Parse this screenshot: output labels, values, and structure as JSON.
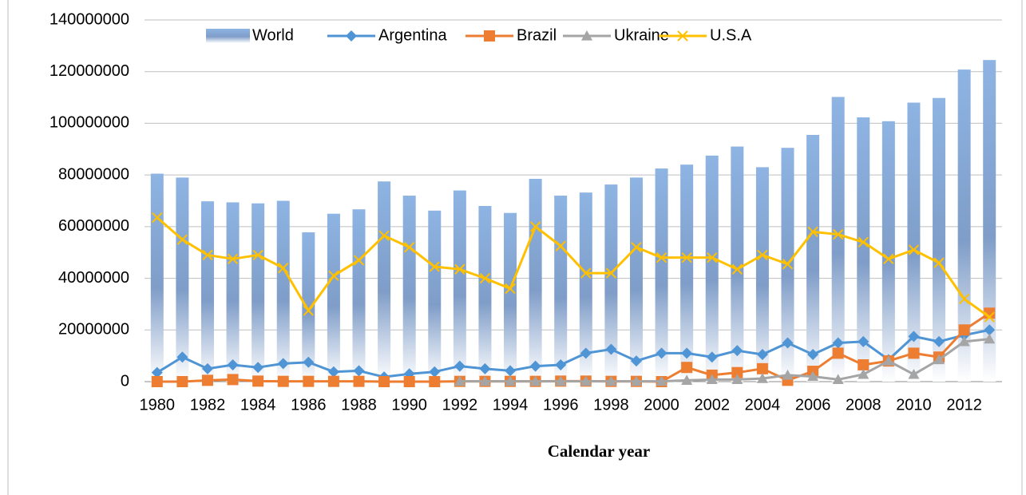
{
  "chart_data": {
    "type": "combo",
    "x_label": "Calendar year",
    "categories": [
      "1980",
      null,
      "1982",
      null,
      "1984",
      null,
      "1986",
      null,
      "1988",
      null,
      "1990",
      null,
      "1992",
      null,
      "1994",
      null,
      "1996",
      null,
      "1998",
      null,
      "2000",
      null,
      "2002",
      null,
      "2004",
      null,
      "2006",
      null,
      "2008",
      null,
      "2010",
      null,
      "2012",
      null
    ],
    "ylim": [
      0,
      140000000
    ],
    "yticks": [
      0,
      20000000,
      40000000,
      60000000,
      80000000,
      100000000,
      120000000,
      140000000
    ],
    "grid": true,
    "legend": "top",
    "series": [
      {
        "name": "World",
        "type": "bar",
        "color": "#8eb4e3",
        "values": [
          80500000,
          79000000,
          69800000,
          69400000,
          69000000,
          70000000,
          57800000,
          65000000,
          66700000,
          77500000,
          72000000,
          66200000,
          74000000,
          68000000,
          65300000,
          78500000,
          72000000,
          73200000,
          76300000,
          79000000,
          82500000,
          84000000,
          87500000,
          91000000,
          83000000,
          90500000,
          95500000,
          110200000,
          102300000,
          100800000,
          108000000,
          109800000,
          120800000,
          124500000
        ]
      },
      {
        "name": "Argentina",
        "type": "line",
        "marker": "diamond",
        "color": "#4f94d4",
        "values": [
          3500000,
          9500000,
          5000000,
          6500000,
          5500000,
          7000000,
          7500000,
          3800000,
          4200000,
          1800000,
          3000000,
          3800000,
          6000000,
          5000000,
          4200000,
          6000000,
          6500000,
          11000000,
          12500000,
          8000000,
          11000000,
          11000000,
          9500000,
          12000000,
          10500000,
          15000000,
          10500000,
          15000000,
          15500000,
          8500000,
          17500000,
          15500000,
          18000000,
          20000000
        ]
      },
      {
        "name": "Brazil",
        "type": "line",
        "marker": "square",
        "color": "#ed7d31",
        "values": [
          0,
          0,
          500000,
          800000,
          200000,
          100000,
          100000,
          100000,
          100000,
          0,
          0,
          0,
          100000,
          100000,
          100000,
          100000,
          200000,
          200000,
          100000,
          100000,
          0,
          5500000,
          2500000,
          3500000,
          5000000,
          500000,
          4000000,
          11000000,
          6500000,
          8000000,
          11000000,
          9500000,
          20000000,
          26500000
        ]
      },
      {
        "name": "Ukraine",
        "type": "line",
        "marker": "triangle",
        "color": "#a5a5a5",
        "values": [
          null,
          null,
          null,
          null,
          null,
          null,
          null,
          null,
          null,
          null,
          null,
          null,
          100000,
          100000,
          100000,
          100000,
          100000,
          100000,
          100000,
          100000,
          100000,
          500000,
          800000,
          800000,
          1200000,
          2500000,
          2000000,
          800000,
          2800000,
          8000000,
          2800000,
          8500000,
          15500000,
          16500000
        ]
      },
      {
        "name": "U.S.A",
        "type": "line",
        "marker": "x",
        "color": "#ffc000",
        "values": [
          63500000,
          55000000,
          49000000,
          47500000,
          49000000,
          44000000,
          27500000,
          41000000,
          47000000,
          56500000,
          52000000,
          44500000,
          43500000,
          40000000,
          36000000,
          60000000,
          52500000,
          42000000,
          42000000,
          52000000,
          48000000,
          48000000,
          48000000,
          43500000,
          49000000,
          45500000,
          58000000,
          57000000,
          54000000,
          47500000,
          51000000,
          46000000,
          32000000,
          25000000
        ]
      }
    ]
  }
}
